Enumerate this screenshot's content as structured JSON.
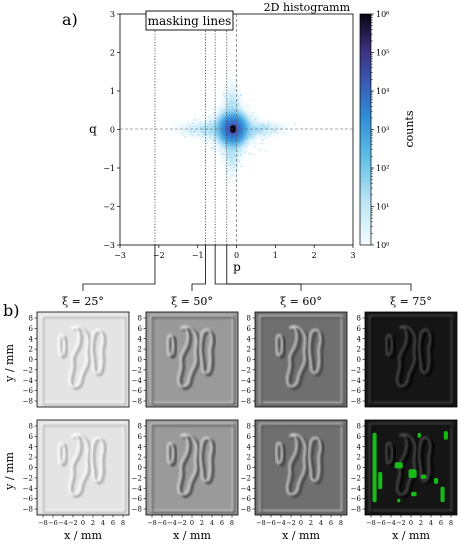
{
  "panel_a": {
    "label": "a)",
    "title": "2D histogramm",
    "annotation": "masking lines",
    "colorbar_label": "counts",
    "colorbar_ticks": [
      "10⁰",
      "10¹",
      "10²",
      "10³",
      "10⁴",
      "10⁵",
      "10⁶"
    ]
  },
  "panel_b": {
    "label": "b)",
    "xi_labels": [
      "ξ = 25°",
      "ξ = 50°",
      "ξ = 60°",
      "ξ = 75°"
    ],
    "ylabel": "y / mm",
    "xlabel": "x / mm",
    "tick_labels": [
      "−8",
      "−6",
      "−4",
      "−2",
      "0",
      "2",
      "4",
      "6",
      "8"
    ],
    "xi_p_values": [
      -2.1,
      -0.8,
      -0.55,
      -0.25
    ],
    "xi_angles_deg": [
      25,
      50,
      60,
      75
    ],
    "background_gray": [
      "#e4e4e4",
      "#9a9a9a",
      "#6f6f6f",
      "#151515"
    ],
    "mask_color": "#18cc18"
  },
  "chart_data": {
    "type": "heatmap",
    "title": "2D histogramm",
    "xlabel": "p",
    "ylabel": "q",
    "xlim": [
      -3,
      3
    ],
    "ylim": [
      -3,
      3
    ],
    "xticks": [
      -3,
      -2,
      -1,
      0,
      1,
      2,
      3
    ],
    "yticks": [
      -3,
      -2,
      -1,
      0,
      1,
      2,
      3
    ],
    "xtick_labels": [
      "−3",
      "−2",
      "−1",
      "0",
      "1",
      "2",
      "3"
    ],
    "ytick_labels": [
      "−3",
      "−2",
      "−1",
      "0",
      "1",
      "2",
      "3"
    ],
    "colorbar": {
      "label": "counts",
      "scale": "log",
      "range": [
        1,
        1000000
      ]
    },
    "peak": {
      "p": -0.1,
      "q": 0.0
    },
    "masking_lines_p": [
      -2.1,
      -0.8,
      -0.55,
      -0.25
    ],
    "grid": false
  }
}
